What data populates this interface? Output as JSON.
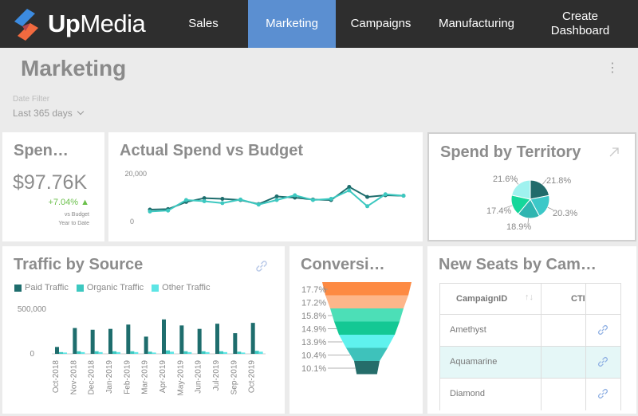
{
  "brand": {
    "name_bold": "Up",
    "name_light": "Media"
  },
  "nav": {
    "items": [
      {
        "label": "Sales"
      },
      {
        "label": "Marketing"
      },
      {
        "label": "Campaigns"
      },
      {
        "label": "Manufacturing"
      },
      {
        "label": "Create Dashboard"
      }
    ],
    "active": "Marketing"
  },
  "page": {
    "title": "Marketing"
  },
  "filter": {
    "label": "Date Filter",
    "value": "Last 365 days"
  },
  "kpi": {
    "title": "Spen…",
    "value": "$97.76K",
    "delta": "+7.04% ▲",
    "sub1": "vs Budget",
    "sub2": "Year to Date"
  },
  "spend_budget": {
    "title": "Actual Spend vs Budget",
    "chart_data": {
      "type": "line",
      "ylim": [
        0,
        20000
      ],
      "yticks": [
        "20,000",
        "0"
      ],
      "series": [
        {
          "values": [
            5000,
            5200,
            8200,
            9800,
            9500,
            9000,
            7300,
            10500,
            10000,
            9200,
            9000,
            14500,
            10300,
            11000,
            10800
          ],
          "color": "#1e6d6d"
        },
        {
          "values": [
            4200,
            4600,
            9000,
            8500,
            7700,
            9200,
            7100,
            9000,
            11000,
            9000,
            9500,
            13000,
            6400,
            11400,
            10800
          ],
          "color": "#3cc8c0"
        }
      ]
    }
  },
  "territory": {
    "title": "Spend by Territory",
    "chart_data": {
      "type": "pie",
      "labels": [
        "21.8%",
        "20.3%",
        "18.9%",
        "17.4%",
        "21.6%"
      ],
      "values": [
        21.8,
        20.3,
        18.9,
        17.4,
        21.6
      ],
      "colors": [
        "#216b6b",
        "#3cc8c8",
        "#2fb5b0",
        "#14d79a",
        "#9ff2ef"
      ]
    }
  },
  "traffic": {
    "title": "Traffic by Source",
    "legend": [
      {
        "name": "Paid Traffic",
        "color": "#1e6d6d"
      },
      {
        "name": "Organic Traffic",
        "color": "#3cc8c0"
      },
      {
        "name": "Other Traffic",
        "color": "#5de5e5"
      }
    ],
    "chart_data": {
      "type": "bar",
      "ylim": [
        0,
        600000
      ],
      "yticks": [
        "500,000",
        "0"
      ],
      "categories": [
        "Oct-2018",
        "Nov-2018",
        "Dec-2018",
        "Jan-2019",
        "Feb-2019",
        "Mar-2019",
        "Apr-2019",
        "May-2019",
        "Jun-2019",
        "Jul-2019",
        "Sep-2019",
        "Oct-2019"
      ],
      "series": [
        {
          "name": "Paid Traffic",
          "values": [
            80000,
            300000,
            280000,
            290000,
            340000,
            200000,
            400000,
            330000,
            290000,
            350000,
            240000,
            360000
          ]
        },
        {
          "name": "Organic Traffic",
          "values": [
            20000,
            30000,
            30000,
            30000,
            30000,
            25000,
            40000,
            30000,
            30000,
            30000,
            25000,
            35000
          ]
        },
        {
          "name": "Other Traffic",
          "values": [
            15000,
            20000,
            20000,
            20000,
            20000,
            15000,
            25000,
            20000,
            20000,
            20000,
            15000,
            25000
          ]
        }
      ]
    }
  },
  "conversion": {
    "title": "Conversi…",
    "chart_data": {
      "type": "funnel",
      "labels": [
        "17.7%",
        "17.2%",
        "15.8%",
        "14.9%",
        "13.9%",
        "10.4%",
        "10.1%"
      ],
      "values": [
        17.7,
        17.2,
        15.8,
        14.9,
        13.9,
        10.4,
        10.1
      ],
      "colors": [
        "#fd8a43",
        "#fdb68a",
        "#4cdfb7",
        "#14c894",
        "#5ff2ee",
        "#3ec2bb",
        "#256d6a"
      ]
    }
  },
  "seats": {
    "title": "New Seats by Cam…",
    "columns": [
      "CampaignID",
      "CTI"
    ],
    "rows": [
      {
        "campaign": "Amethyst"
      },
      {
        "campaign": "Aquamarine"
      },
      {
        "campaign": "Diamond"
      }
    ]
  }
}
